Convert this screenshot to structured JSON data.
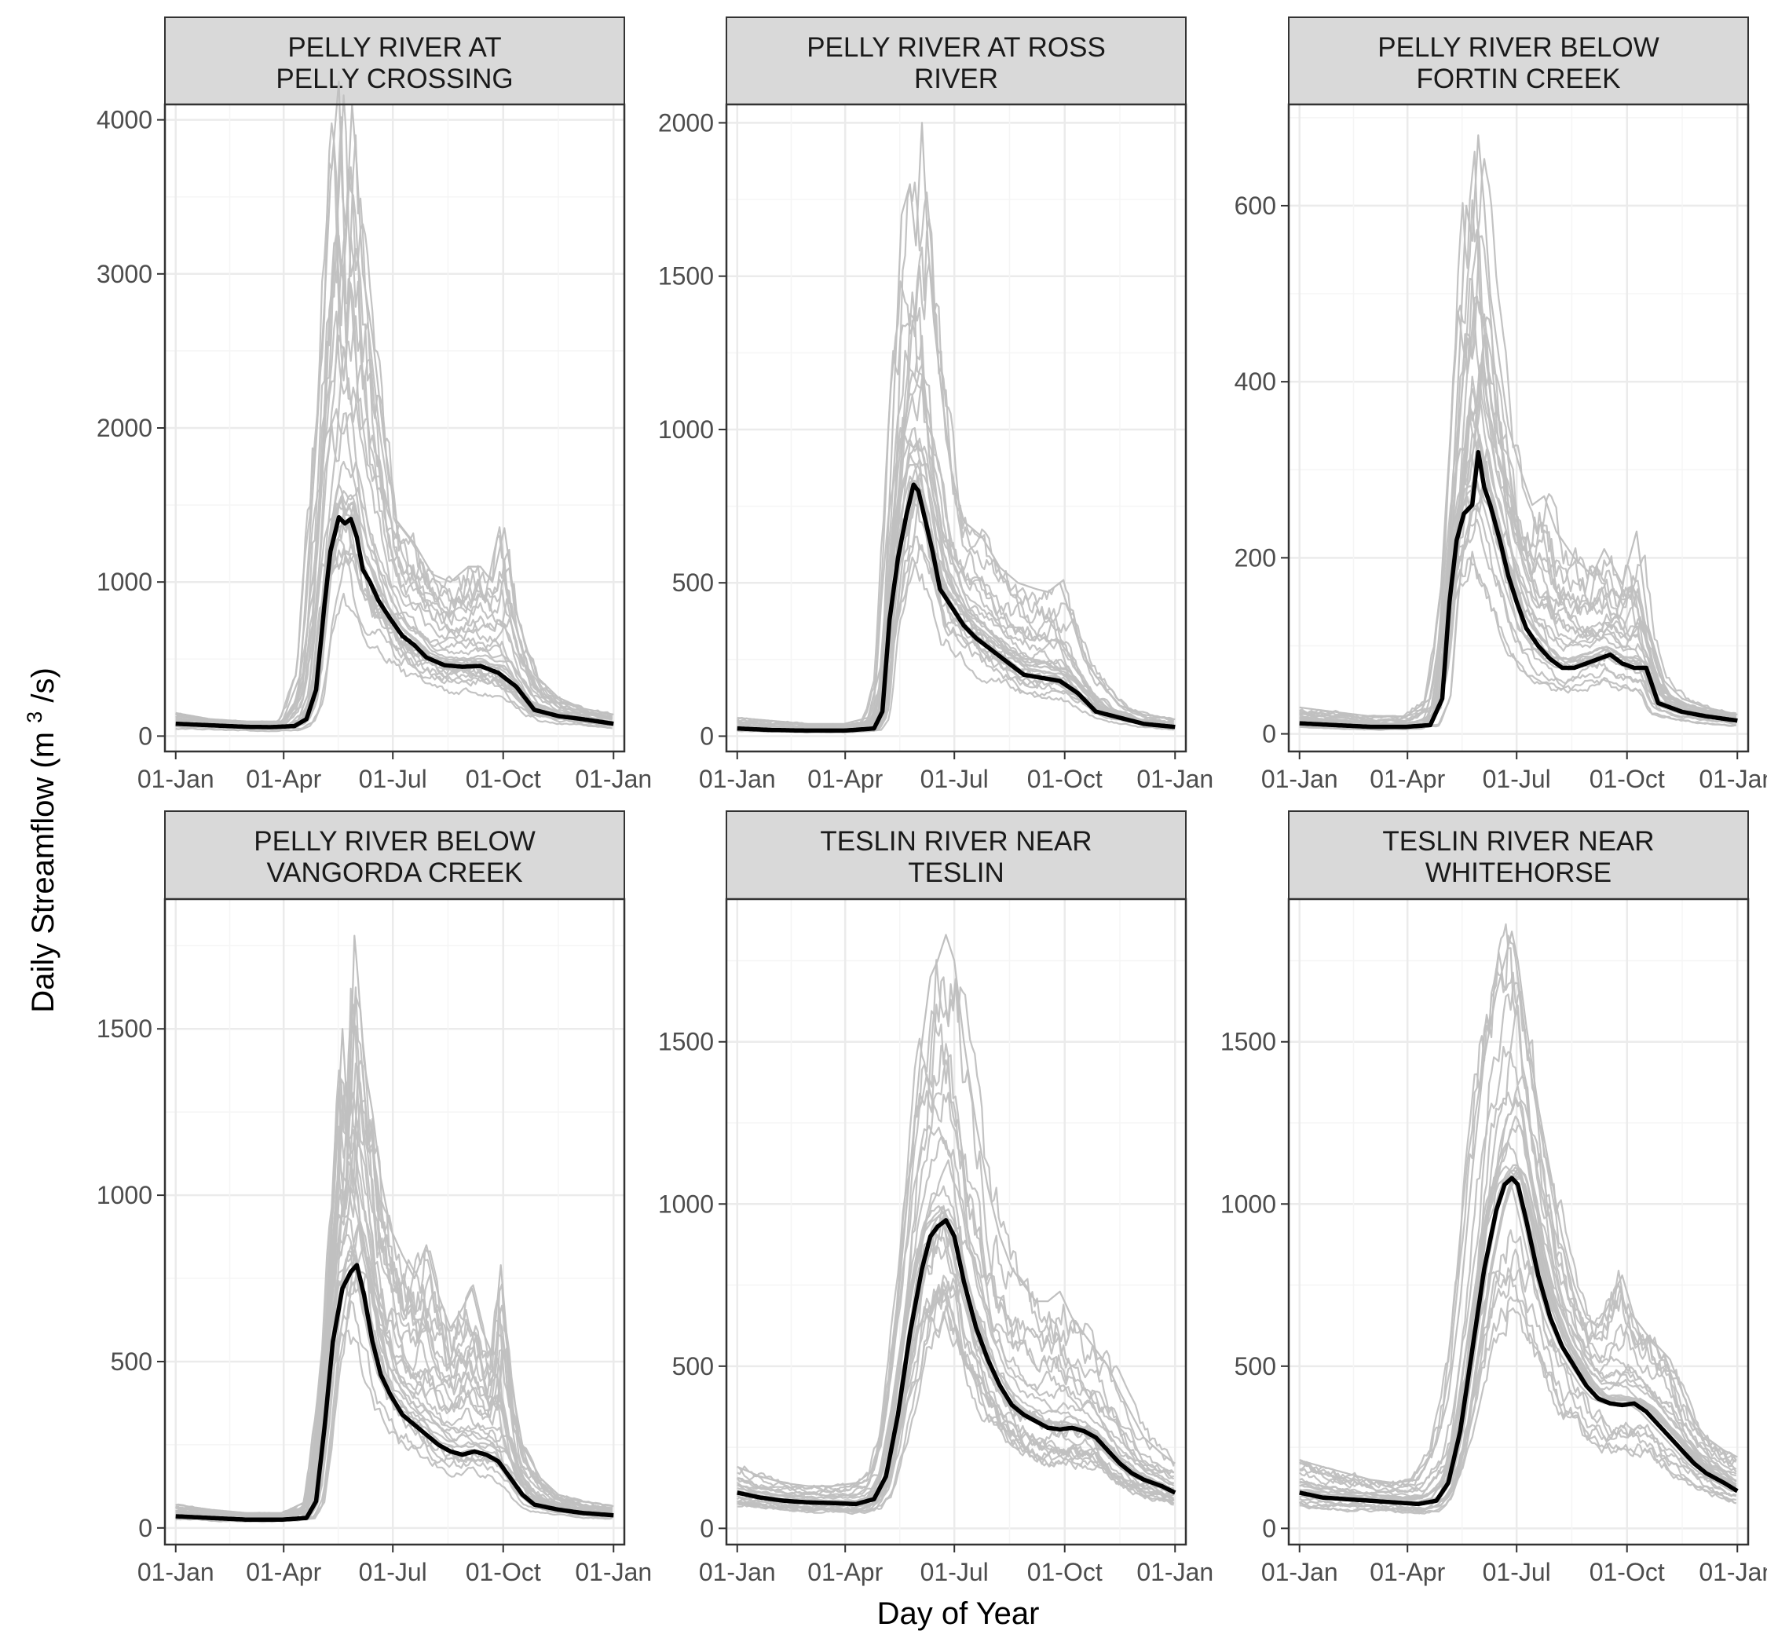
{
  "figure": {
    "x_axis_title": "Day of Year",
    "y_axis_title_main": "Daily Streamflow",
    "y_axis_title_unit_open": "(m",
    "y_axis_title_unit_sup": "3",
    "y_axis_title_unit_close": "/s)"
  },
  "colors": {
    "historical_years": "#c0c0c0",
    "mean_line": "#000000",
    "strip_fill": "#d9d9d9",
    "grid_major": "#ebebeb",
    "grid_minor": "#f5f5f5",
    "panel_border": "#333333"
  },
  "chart_data": [
    {
      "type": "line",
      "title": "PELLY RIVER AT PELLY CROSSING",
      "title_lines": [
        "PELLY RIVER AT",
        "PELLY CROSSING"
      ],
      "xlabel": "Day of Year",
      "ylabel": "Daily Streamflow (m3/s)",
      "x_ticks": [
        "01-Jan",
        "01-Apr",
        "01-Jul",
        "01-Oct",
        "01-Jan"
      ],
      "x_tick_values": [
        1,
        91,
        182,
        274,
        366
      ],
      "xlim": [
        -8,
        375
      ],
      "ylim": [
        -100,
        4100
      ],
      "y_ticks": [
        0,
        1000,
        2000,
        3000,
        4000
      ],
      "peak_day": 145,
      "mean_series": {
        "name": "Mean",
        "x": [
          1,
          30,
          60,
          80,
          100,
          110,
          118,
          125,
          130,
          137,
          142,
          147,
          152,
          157,
          163,
          170,
          180,
          190,
          200,
          210,
          225,
          240,
          255,
          270,
          285,
          300,
          320,
          340,
          366
        ],
        "values": [
          80,
          70,
          60,
          58,
          65,
          110,
          300,
          850,
          1200,
          1420,
          1380,
          1410,
          1290,
          1080,
          1000,
          880,
          760,
          650,
          590,
          510,
          460,
          450,
          455,
          410,
          320,
          170,
          130,
          110,
          80
        ]
      },
      "envelope_series": {
        "name": "Historical years (upper)",
        "x": [
          1,
          30,
          60,
          90,
          105,
          118,
          125,
          130,
          137,
          140,
          143,
          148,
          152,
          157,
          165,
          175,
          185,
          200,
          215,
          230,
          245,
          255,
          265,
          275,
          285,
          300,
          320,
          340,
          366
        ],
        "values": [
          150,
          110,
          95,
          95,
          400,
          1900,
          2800,
          3600,
          4250,
          3500,
          3300,
          4100,
          3700,
          3000,
          2600,
          1900,
          1400,
          1250,
          1050,
          1000,
          1100,
          1100,
          1000,
          1350,
          800,
          400,
          250,
          180,
          140
        ]
      }
    },
    {
      "type": "line",
      "title": "PELLY RIVER AT ROSS RIVER",
      "title_lines": [
        "PELLY RIVER AT ROSS",
        "RIVER"
      ],
      "xlabel": "Day of Year",
      "ylabel": "Daily Streamflow (m3/s)",
      "x_ticks": [
        "01-Jan",
        "01-Apr",
        "01-Jul",
        "01-Oct",
        "01-Jan"
      ],
      "x_tick_values": [
        1,
        91,
        182,
        274,
        366
      ],
      "xlim": [
        -8,
        375
      ],
      "ylim": [
        -50,
        2060
      ],
      "y_ticks": [
        0,
        500,
        1000,
        1500,
        2000
      ],
      "peak_day": 157,
      "mean_series": {
        "name": "Mean",
        "x": [
          1,
          30,
          60,
          90,
          115,
          122,
          128,
          135,
          142,
          148,
          152,
          158,
          164,
          170,
          180,
          190,
          200,
          210,
          220,
          230,
          240,
          255,
          270,
          285,
          300,
          320,
          340,
          366
        ],
        "values": [
          25,
          20,
          18,
          18,
          25,
          80,
          380,
          580,
          720,
          820,
          800,
          700,
          600,
          480,
          420,
          360,
          320,
          290,
          260,
          230,
          200,
          190,
          180,
          140,
          80,
          60,
          40,
          30
        ]
      },
      "envelope_series": {
        "name": "Historical years (upper)",
        "x": [
          1,
          30,
          60,
          90,
          110,
          122,
          130,
          138,
          145,
          150,
          155,
          160,
          165,
          172,
          180,
          190,
          205,
          220,
          235,
          250,
          260,
          270,
          280,
          290,
          305,
          320,
          340,
          366
        ],
        "values": [
          60,
          50,
          40,
          40,
          60,
          250,
          950,
          1700,
          1800,
          1600,
          2000,
          1600,
          1350,
          1100,
          850,
          700,
          650,
          550,
          500,
          480,
          470,
          500,
          380,
          250,
          170,
          100,
          70,
          55
        ]
      }
    },
    {
      "type": "line",
      "title": "PELLY RIVER BELOW FORTIN CREEK",
      "title_lines": [
        "PELLY RIVER BELOW",
        "FORTIN CREEK"
      ],
      "xlabel": "Day of Year",
      "ylabel": "Daily Streamflow (m3/s)",
      "x_ticks": [
        "01-Jan",
        "01-Apr",
        "01-Jul",
        "01-Oct",
        "01-Jan"
      ],
      "x_tick_values": [
        1,
        91,
        182,
        274,
        366
      ],
      "xlim": [
        -8,
        375
      ],
      "ylim": [
        -20,
        715
      ],
      "y_ticks": [
        0,
        200,
        400,
        600
      ],
      "peak_day": 150,
      "mean_series": {
        "name": "Mean",
        "x": [
          1,
          30,
          60,
          90,
          110,
          120,
          126,
          132,
          138,
          145,
          150,
          155,
          160,
          168,
          175,
          182,
          190,
          200,
          210,
          220,
          230,
          240,
          250,
          260,
          270,
          280,
          290,
          300,
          320,
          340,
          366
        ],
        "values": [
          12,
          10,
          8,
          8,
          10,
          40,
          150,
          220,
          250,
          260,
          320,
          280,
          260,
          220,
          180,
          150,
          120,
          100,
          85,
          75,
          75,
          80,
          85,
          90,
          80,
          75,
          75,
          35,
          25,
          20,
          15
        ]
      },
      "envelope_series": {
        "name": "Historical years (upper)",
        "x": [
          1,
          30,
          60,
          90,
          110,
          125,
          135,
          140,
          145,
          150,
          155,
          160,
          168,
          175,
          185,
          195,
          205,
          215,
          230,
          245,
          255,
          270,
          282,
          292,
          305,
          320,
          340,
          366
        ],
        "values": [
          30,
          25,
          20,
          20,
          40,
          180,
          450,
          600,
          560,
          680,
          600,
          500,
          420,
          350,
          300,
          260,
          270,
          230,
          200,
          180,
          210,
          170,
          230,
          120,
          60,
          40,
          30,
          22
        ]
      }
    },
    {
      "type": "line",
      "title": "PELLY RIVER BELOW VANGORDA CREEK",
      "title_lines": [
        "PELLY RIVER BELOW",
        "VANGORDA CREEK"
      ],
      "xlabel": "Day of Year",
      "ylabel": "Daily Streamflow (m3/s)",
      "x_ticks": [
        "01-Jan",
        "01-Apr",
        "01-Jul",
        "01-Oct",
        "01-Jan"
      ],
      "x_tick_values": [
        1,
        91,
        182,
        274,
        366
      ],
      "xlim": [
        -8,
        375
      ],
      "ylim": [
        -50,
        1890
      ],
      "y_ticks": [
        0,
        500,
        1000,
        1500
      ],
      "peak_day": 152,
      "mean_series": {
        "name": "Mean",
        "x": [
          1,
          30,
          60,
          90,
          110,
          118,
          125,
          132,
          140,
          147,
          152,
          158,
          165,
          172,
          180,
          190,
          200,
          210,
          220,
          230,
          240,
          250,
          260,
          270,
          280,
          290,
          300,
          320,
          340,
          366
        ],
        "values": [
          35,
          30,
          25,
          25,
          30,
          80,
          300,
          560,
          720,
          770,
          790,
          700,
          560,
          460,
          400,
          340,
          310,
          280,
          250,
          230,
          220,
          230,
          220,
          200,
          150,
          100,
          70,
          55,
          45,
          38
        ]
      },
      "envelope_series": {
        "name": "Historical years (upper)",
        "x": [
          1,
          30,
          60,
          90,
          110,
          125,
          135,
          140,
          145,
          150,
          153,
          158,
          165,
          172,
          180,
          190,
          200,
          210,
          220,
          230,
          240,
          248,
          256,
          265,
          272,
          280,
          290,
          305,
          320,
          340,
          366
        ],
        "values": [
          70,
          55,
          45,
          45,
          80,
          500,
          1150,
          1500,
          1200,
          1780,
          1650,
          1400,
          1250,
          1050,
          900,
          820,
          750,
          850,
          700,
          600,
          660,
          720,
          600,
          520,
          790,
          450,
          250,
          150,
          100,
          80,
          65
        ]
      }
    },
    {
      "type": "line",
      "title": "TESLIN RIVER NEAR TESLIN",
      "title_lines": [
        "TESLIN RIVER NEAR",
        "TESLIN"
      ],
      "xlabel": "Day of Year",
      "ylabel": "Daily Streamflow (m3/s)",
      "x_ticks": [
        "01-Jan",
        "01-Apr",
        "01-Jul",
        "01-Oct",
        "01-Jan"
      ],
      "x_tick_values": [
        1,
        91,
        182,
        274,
        366
      ],
      "xlim": [
        -8,
        375
      ],
      "ylim": [
        -50,
        1940
      ],
      "y_ticks": [
        0,
        500,
        1000,
        1500
      ],
      "peak_day": 175,
      "mean_series": {
        "name": "Mean",
        "x": [
          1,
          20,
          40,
          60,
          80,
          100,
          115,
          125,
          135,
          145,
          155,
          162,
          168,
          175,
          182,
          190,
          200,
          210,
          220,
          230,
          240,
          250,
          260,
          270,
          280,
          290,
          300,
          310,
          320,
          330,
          340,
          355,
          366
        ],
        "values": [
          110,
          95,
          85,
          80,
          78,
          75,
          90,
          160,
          350,
          600,
          800,
          900,
          930,
          950,
          900,
          760,
          620,
          520,
          440,
          380,
          350,
          330,
          310,
          305,
          310,
          300,
          280,
          240,
          200,
          170,
          150,
          130,
          110
        ]
      },
      "envelope_series": {
        "name": "Historical years (upper)",
        "x": [
          1,
          20,
          40,
          60,
          80,
          100,
          115,
          125,
          135,
          145,
          155,
          162,
          168,
          175,
          182,
          190,
          200,
          210,
          220,
          230,
          240,
          250,
          260,
          270,
          280,
          290,
          300,
          310,
          320,
          330,
          340,
          355,
          366
        ],
        "values": [
          190,
          160,
          140,
          130,
          130,
          140,
          180,
          350,
          700,
          1100,
          1500,
          1700,
          1750,
          1830,
          1750,
          1500,
          1250,
          1050,
          900,
          800,
          750,
          700,
          700,
          730,
          650,
          600,
          550,
          500,
          420,
          350,
          280,
          230,
          200
        ]
      }
    },
    {
      "type": "line",
      "title": "TESLIN RIVER NEAR WHITEHORSE",
      "title_lines": [
        "TESLIN RIVER NEAR",
        "WHITEHORSE"
      ],
      "xlabel": "Day of Year",
      "ylabel": "Daily Streamflow (m3/s)",
      "x_ticks": [
        "01-Jan",
        "01-Apr",
        "01-Jul",
        "01-Oct",
        "01-Jan"
      ],
      "x_tick_values": [
        1,
        91,
        182,
        274,
        366
      ],
      "xlim": [
        -8,
        375
      ],
      "ylim": [
        -50,
        1940
      ],
      "y_ticks": [
        0,
        500,
        1000,
        1500
      ],
      "peak_day": 180,
      "mean_series": {
        "name": "Mean",
        "x": [
          1,
          20,
          40,
          60,
          80,
          100,
          115,
          125,
          135,
          145,
          155,
          165,
          172,
          178,
          183,
          190,
          200,
          210,
          220,
          230,
          240,
          250,
          260,
          270,
          280,
          290,
          300,
          310,
          320,
          330,
          340,
          355,
          366
        ],
        "values": [
          110,
          95,
          90,
          85,
          80,
          75,
          85,
          140,
          300,
          550,
          800,
          980,
          1060,
          1080,
          1060,
          950,
          780,
          650,
          560,
          500,
          440,
          400,
          385,
          380,
          385,
          360,
          320,
          280,
          240,
          200,
          170,
          140,
          115
        ]
      },
      "envelope_series": {
        "name": "Historical years (upper)",
        "x": [
          1,
          20,
          40,
          60,
          80,
          100,
          115,
          125,
          135,
          145,
          155,
          165,
          172,
          178,
          183,
          190,
          200,
          210,
          220,
          230,
          240,
          250,
          260,
          270,
          280,
          290,
          300,
          310,
          320,
          330,
          340,
          355,
          366
        ],
        "values": [
          210,
          190,
          170,
          150,
          140,
          150,
          260,
          400,
          700,
          1100,
          1450,
          1650,
          1750,
          1840,
          1750,
          1550,
          1300,
          1100,
          900,
          750,
          650,
          620,
          700,
          780,
          650,
          600,
          560,
          520,
          420,
          330,
          280,
          240,
          220
        ]
      }
    }
  ]
}
